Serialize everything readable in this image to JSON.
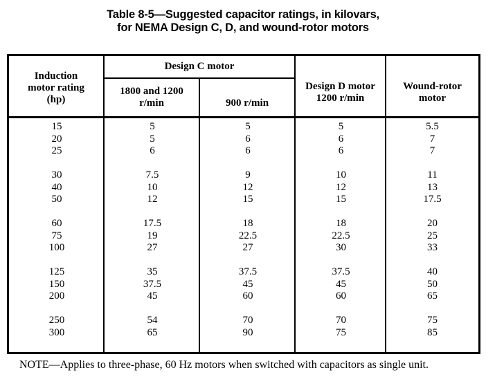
{
  "title": {
    "line1": "Table 8-5—Suggested capacitor ratings, in kilovars,",
    "line2": "for NEMA Design C, D, and wound-rotor motors"
  },
  "table": {
    "header": {
      "induction": "Induction\nmotor rating\n(hp)",
      "design_c": "Design C motor",
      "rpm_1800_1200": "1800 and 1200\nr/min",
      "rpm_900": "900 r/min",
      "design_d": "Design D motor\n1200 r/min",
      "wound_rotor": "Wound-rotor\nmotor"
    },
    "groups": [
      {
        "rows": [
          [
            "15",
            "5",
            "5",
            "5",
            "5.5"
          ],
          [
            "20",
            "5",
            "6",
            "6",
            "7"
          ],
          [
            "25",
            "6",
            "6",
            "6",
            "7"
          ]
        ]
      },
      {
        "rows": [
          [
            "30",
            "7.5",
            "9",
            "10",
            "11"
          ],
          [
            "40",
            "10",
            "12",
            "12",
            "13"
          ],
          [
            "50",
            "12",
            "15",
            "15",
            "17.5"
          ]
        ]
      },
      {
        "rows": [
          [
            "60",
            "17.5",
            "18",
            "18",
            "20"
          ],
          [
            "75",
            "19",
            "22.5",
            "22.5",
            "25"
          ],
          [
            "100",
            "27",
            "27",
            "30",
            "33"
          ]
        ]
      },
      {
        "rows": [
          [
            "125",
            "35",
            "37.5",
            "37.5",
            "40"
          ],
          [
            "150",
            "37.5",
            "45",
            "45",
            "50"
          ],
          [
            "200",
            "45",
            "60",
            "60",
            "65"
          ]
        ]
      },
      {
        "rows": [
          [
            "250",
            "54",
            "70",
            "70",
            "75"
          ],
          [
            "300",
            "65",
            "90",
            "75",
            "85"
          ]
        ]
      }
    ]
  },
  "note": "NOTE—Applies to three-phase, 60 Hz motors when switched with capacitors as single unit.",
  "colors": {
    "text": "#000000",
    "background": "#ffffff",
    "border": "#000000"
  }
}
